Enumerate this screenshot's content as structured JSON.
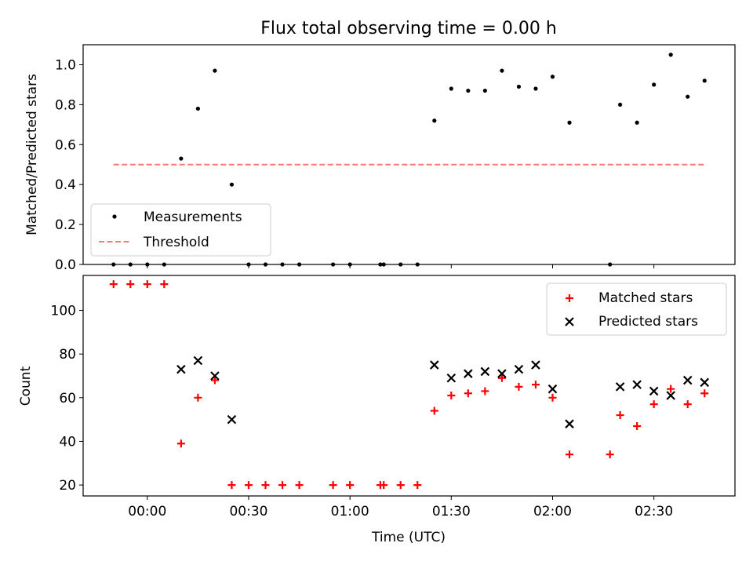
{
  "chart_data": [
    {
      "panel": "top",
      "type": "scatter",
      "title": "Flux total observing time = 0.00 h",
      "xlabel": "",
      "ylabel": "Matched/Predicted stars",
      "ylim": [
        0.0,
        1.1
      ],
      "yticks": [
        0.0,
        0.2,
        0.4,
        0.6,
        0.8,
        1.0
      ],
      "xlim_minutes": [
        -19,
        174
      ],
      "legend": {
        "placement": "lower-left",
        "entries": [
          "Measurements",
          "Threshold"
        ]
      },
      "series": [
        {
          "name": "Measurements",
          "color": "#000000",
          "marker": "dot",
          "points": [
            {
              "t": -10,
              "y": 0.0
            },
            {
              "t": -5,
              "y": 0.0
            },
            {
              "t": 0,
              "y": 0.0
            },
            {
              "t": 5,
              "y": 0.0
            },
            {
              "t": 10,
              "y": 0.53
            },
            {
              "t": 15,
              "y": 0.78
            },
            {
              "t": 20,
              "y": 0.97
            },
            {
              "t": 25,
              "y": 0.4
            },
            {
              "t": 30,
              "y": 0.0
            },
            {
              "t": 35,
              "y": 0.0
            },
            {
              "t": 40,
              "y": 0.0
            },
            {
              "t": 45,
              "y": 0.0
            },
            {
              "t": 55,
              "y": 0.0
            },
            {
              "t": 60,
              "y": 0.0
            },
            {
              "t": 69,
              "y": 0.0
            },
            {
              "t": 70,
              "y": 0.0
            },
            {
              "t": 75,
              "y": 0.0
            },
            {
              "t": 80,
              "y": 0.0
            },
            {
              "t": 85,
              "y": 0.72
            },
            {
              "t": 90,
              "y": 0.88
            },
            {
              "t": 95,
              "y": 0.87
            },
            {
              "t": 100,
              "y": 0.87
            },
            {
              "t": 105,
              "y": 0.97
            },
            {
              "t": 110,
              "y": 0.89
            },
            {
              "t": 115,
              "y": 0.88
            },
            {
              "t": 120,
              "y": 0.94
            },
            {
              "t": 125,
              "y": 0.71
            },
            {
              "t": 137,
              "y": 0.0
            },
            {
              "t": 140,
              "y": 0.8
            },
            {
              "t": 145,
              "y": 0.71
            },
            {
              "t": 150,
              "y": 0.9
            },
            {
              "t": 155,
              "y": 1.05
            },
            {
              "t": 160,
              "y": 0.84
            },
            {
              "t": 165,
              "y": 0.92
            }
          ]
        },
        {
          "name": "Threshold",
          "color": "#ff7777",
          "style": "dashed",
          "points": [
            {
              "t": -10,
              "y": 0.5
            },
            {
              "t": 165,
              "y": 0.5
            }
          ]
        }
      ]
    },
    {
      "panel": "bottom",
      "type": "scatter",
      "title": "",
      "xlabel": "Time (UTC)",
      "ylabel": "Count",
      "ylim": [
        15,
        116
      ],
      "yticks": [
        20,
        40,
        60,
        80,
        100
      ],
      "xlim_minutes": [
        -19,
        174
      ],
      "xticks": [
        {
          "t": 0,
          "label": "00:00"
        },
        {
          "t": 30,
          "label": "00:30"
        },
        {
          "t": 60,
          "label": "01:00"
        },
        {
          "t": 90,
          "label": "01:30"
        },
        {
          "t": 120,
          "label": "02:00"
        },
        {
          "t": 150,
          "label": "02:30"
        }
      ],
      "legend": {
        "placement": "upper-right",
        "entries": [
          "Matched stars",
          "Predicted stars"
        ]
      },
      "series": [
        {
          "name": "Matched stars",
          "color": "#ff0000",
          "marker": "plus",
          "points": [
            {
              "t": -10,
              "y": 112
            },
            {
              "t": -5,
              "y": 112
            },
            {
              "t": 0,
              "y": 112
            },
            {
              "t": 5,
              "y": 112
            },
            {
              "t": 10,
              "y": 39
            },
            {
              "t": 15,
              "y": 60
            },
            {
              "t": 20,
              "y": 68
            },
            {
              "t": 25,
              "y": 20
            },
            {
              "t": 30,
              "y": 20
            },
            {
              "t": 35,
              "y": 20
            },
            {
              "t": 40,
              "y": 20
            },
            {
              "t": 45,
              "y": 20
            },
            {
              "t": 55,
              "y": 20
            },
            {
              "t": 60,
              "y": 20
            },
            {
              "t": 69,
              "y": 20
            },
            {
              "t": 70,
              "y": 20
            },
            {
              "t": 75,
              "y": 20
            },
            {
              "t": 80,
              "y": 20
            },
            {
              "t": 85,
              "y": 54
            },
            {
              "t": 90,
              "y": 61
            },
            {
              "t": 95,
              "y": 62
            },
            {
              "t": 100,
              "y": 63
            },
            {
              "t": 105,
              "y": 69
            },
            {
              "t": 110,
              "y": 65
            },
            {
              "t": 115,
              "y": 66
            },
            {
              "t": 120,
              "y": 60
            },
            {
              "t": 125,
              "y": 34
            },
            {
              "t": 137,
              "y": 34
            },
            {
              "t": 140,
              "y": 52
            },
            {
              "t": 145,
              "y": 47
            },
            {
              "t": 150,
              "y": 57
            },
            {
              "t": 155,
              "y": 64
            },
            {
              "t": 160,
              "y": 57
            },
            {
              "t": 165,
              "y": 62
            }
          ]
        },
        {
          "name": "Predicted stars",
          "color": "#000000",
          "marker": "x",
          "points": [
            {
              "t": 10,
              "y": 73
            },
            {
              "t": 15,
              "y": 77
            },
            {
              "t": 20,
              "y": 70
            },
            {
              "t": 25,
              "y": 50
            },
            {
              "t": 85,
              "y": 75
            },
            {
              "t": 90,
              "y": 69
            },
            {
              "t": 95,
              "y": 71
            },
            {
              "t": 100,
              "y": 72
            },
            {
              "t": 105,
              "y": 71
            },
            {
              "t": 110,
              "y": 73
            },
            {
              "t": 115,
              "y": 75
            },
            {
              "t": 120,
              "y": 64
            },
            {
              "t": 125,
              "y": 48
            },
            {
              "t": 140,
              "y": 65
            },
            {
              "t": 145,
              "y": 66
            },
            {
              "t": 150,
              "y": 63
            },
            {
              "t": 155,
              "y": 61
            },
            {
              "t": 160,
              "y": 68
            },
            {
              "t": 165,
              "y": 67
            }
          ]
        }
      ]
    }
  ]
}
